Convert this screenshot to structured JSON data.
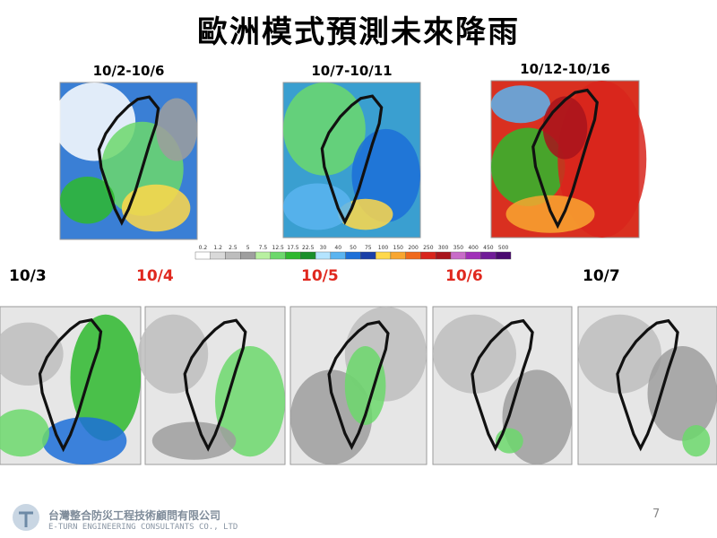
{
  "title": "歐洲模式預測未來降雨",
  "periods": [
    {
      "label": "10/2-10/6",
      "color": "#3a7fd5"
    },
    {
      "label": "10/7-10/11",
      "color": "#3a9fd0"
    },
    {
      "label": "10/12-10/16",
      "color": "#d93020"
    }
  ],
  "colorbar": {
    "values": [
      0.2,
      1.2,
      2.5,
      5,
      7.5,
      12.5,
      17.5,
      22.5,
      30,
      40,
      50,
      75,
      100,
      150,
      200,
      250,
      300,
      350,
      400,
      450,
      500
    ],
    "colors": [
      "#ffffff",
      "#d9d9d9",
      "#bdbdbd",
      "#9e9e9e",
      "#b8f0a0",
      "#6cd86c",
      "#2eb82e",
      "#1a8f2a",
      "#b4e4ff",
      "#5ab4f0",
      "#1c6fd8",
      "#1a3fa8",
      "#ffd84a",
      "#f8a630",
      "#f06a1c",
      "#d8241c",
      "#a8141c",
      "#c86cc8",
      "#a030b8",
      "#701c98",
      "#4a0a70"
    ]
  },
  "days": [
    {
      "label": "10/3",
      "color": "#000000"
    },
    {
      "label": "10/4",
      "color": "#e0281e"
    },
    {
      "label": "10/5",
      "color": "#e0281e"
    },
    {
      "label": "10/6",
      "color": "#e0281e"
    },
    {
      "label": "10/7",
      "color": "#000000"
    }
  ],
  "footer": {
    "company": "台灣整合防災工程技術顧問有限公司",
    "company_en": "E-TURN ENGINEERING CONSULTANTS CO., LTD",
    "page": 7
  }
}
